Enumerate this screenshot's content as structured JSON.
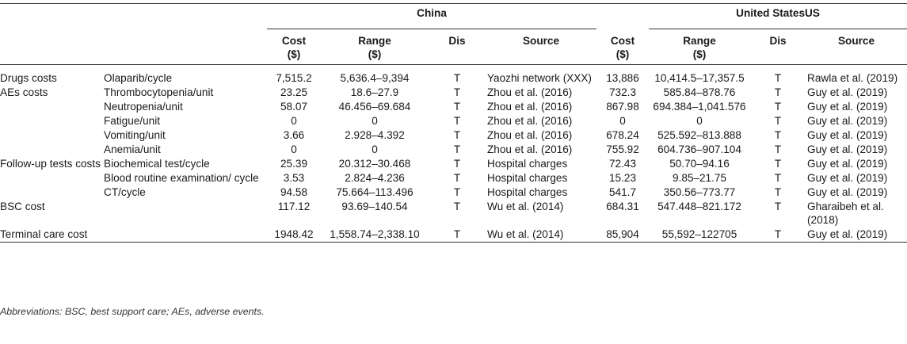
{
  "header": {
    "china": "China",
    "us": "United StatesUS",
    "cost": "Cost",
    "cost_unit": "($)",
    "range": "Range",
    "range_unit": "($)",
    "dis": "Dis",
    "source": "Source"
  },
  "rows": [
    {
      "category": "Drugs costs",
      "item": "Olaparib/cycle",
      "cn_cost": "7,515.2",
      "cn_range": "5,636.4–9,394",
      "cn_dis": "T",
      "cn_source": "Yaozhi network (XXX)",
      "us_cost": "13,886",
      "us_range": "10,414.5–17,357.5",
      "us_dis": "T",
      "us_source": "Rawla et al. (2019)"
    },
    {
      "category": "AEs costs",
      "item": "Thrombocytopenia/unit",
      "cn_cost": "23.25",
      "cn_range": "18.6–27.9",
      "cn_dis": "T",
      "cn_source": "Zhou et al. (2016)",
      "us_cost": "732.3",
      "us_range": "585.84–878.76",
      "us_dis": "T",
      "us_source": "Guy et al. (2019)"
    },
    {
      "category": "",
      "item": "Neutropenia/unit",
      "cn_cost": "58.07",
      "cn_range": "46.456–69.684",
      "cn_dis": "T",
      "cn_source": "Zhou et al. (2016)",
      "us_cost": "867.98",
      "us_range": "694.384–1,041.576",
      "us_dis": "T",
      "us_source": "Guy et al. (2019)"
    },
    {
      "category": "",
      "item": "Fatigue/unit",
      "cn_cost": "0",
      "cn_range": "0",
      "cn_dis": "T",
      "cn_source": "Zhou et al. (2016)",
      "us_cost": "0",
      "us_range": "0",
      "us_dis": "T",
      "us_source": "Guy et al. (2019)"
    },
    {
      "category": "",
      "item": "Vomiting/unit",
      "cn_cost": "3.66",
      "cn_range": "2.928–4.392",
      "cn_dis": "T",
      "cn_source": "Zhou et al. (2016)",
      "us_cost": "678.24",
      "us_range": "525.592–813.888",
      "us_dis": "T",
      "us_source": "Guy et al. (2019)"
    },
    {
      "category": "",
      "item": "Anemia/unit",
      "cn_cost": "0",
      "cn_range": "0",
      "cn_dis": "T",
      "cn_source": "Zhou et al. (2016)",
      "us_cost": "755.92",
      "us_range": "604.736–907.104",
      "us_dis": "T",
      "us_source": "Guy et al. (2019)"
    },
    {
      "category": "Follow-up tests costs",
      "item": "Biochemical test/cycle",
      "cn_cost": "25.39",
      "cn_range": "20.312–30.468",
      "cn_dis": "T",
      "cn_source": "Hospital charges",
      "us_cost": "72.43",
      "us_range": "50.70–94.16",
      "us_dis": "T",
      "us_source": "Guy et al. (2019)"
    },
    {
      "category": "",
      "item": "Blood routine examination/ cycle",
      "cn_cost": "3.53",
      "cn_range": "2.824–4.236",
      "cn_dis": "T",
      "cn_source": "Hospital charges",
      "us_cost": "15.23",
      "us_range": "9.85–21.75",
      "us_dis": "T",
      "us_source": "Guy et al. (2019)"
    },
    {
      "category": "",
      "item": "CT/cycle",
      "cn_cost": "94.58",
      "cn_range": "75.664–113.496",
      "cn_dis": "T",
      "cn_source": "Hospital charges",
      "us_cost": "541.7",
      "us_range": "350.56–773.77",
      "us_dis": "T",
      "us_source": "Guy et al. (2019)"
    },
    {
      "category": "BSC cost",
      "item": "",
      "cn_cost": "117.12",
      "cn_range": "93.69–140.54",
      "cn_dis": "T",
      "cn_source": "Wu et al. (2014)",
      "us_cost": "684.31",
      "us_range": "547.448–821.172",
      "us_dis": "T",
      "us_source": "Gharaibeh et al. (2018)"
    },
    {
      "category": "Terminal care cost",
      "item": "",
      "cn_cost": "1948.42",
      "cn_range": "1,558.74–2,338.10",
      "cn_dis": "T",
      "cn_source": "Wu et al. (2014)",
      "us_cost": "85,904",
      "us_range": "55,592–122705",
      "us_dis": "T",
      "us_source": "Guy et al. (2019)"
    }
  ],
  "footnote": "Abbreviations: BSC, best support care; AEs, adverse events."
}
